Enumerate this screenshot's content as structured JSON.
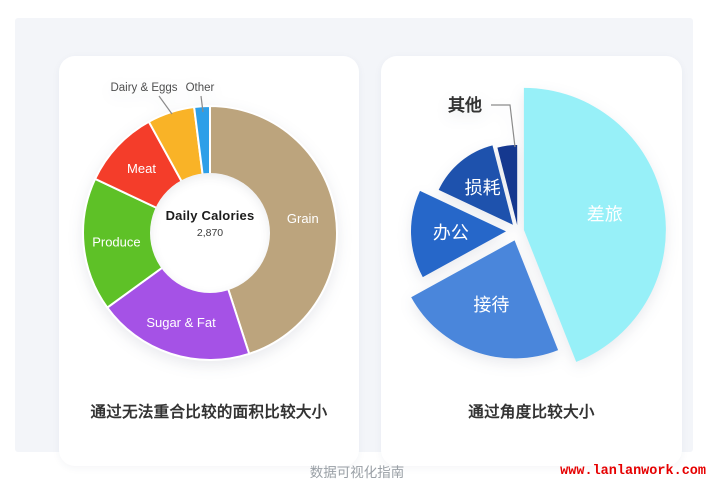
{
  "footer": {
    "note": "数据可视化指南",
    "watermark": "www.lanlanwork.com"
  },
  "colors": {
    "panel_bg": "#F3F5F9",
    "card_bg": "#FFFFFF",
    "leader_line": "#8B8B8B",
    "watermark_red": "#E60000",
    "footer_gray": "#9AA0A6"
  },
  "chart_data": [
    {
      "type": "pie",
      "variant": "donut",
      "caption": "通过无法重合比较的面积比较大小",
      "center": {
        "label": "Daily Calories",
        "value": "2,870"
      },
      "legend": "none",
      "slices": [
        {
          "label": "Grain",
          "pct": 45,
          "color": "#BCA47D",
          "label_pos": "inside"
        },
        {
          "label": "Sugar & Fat",
          "pct": 20,
          "color": "#A552E6",
          "label_pos": "inside"
        },
        {
          "label": "Produce",
          "pct": 17,
          "color": "#5EC127",
          "label_pos": "inside"
        },
        {
          "label": "Meat",
          "pct": 10,
          "color": "#F43D2A",
          "label_pos": "inside"
        },
        {
          "label": "Dairy & Eggs",
          "pct": 6,
          "color": "#F9B327",
          "label_pos": "outside"
        },
        {
          "label": "Other",
          "pct": 2,
          "color": "#2D9FE8",
          "label_pos": "outside"
        }
      ]
    },
    {
      "type": "pie",
      "variant": "exploded",
      "caption": "通过角度比较大小",
      "legend": "none",
      "slices": [
        {
          "label": "差旅",
          "pct": 44,
          "color": "#97F0F8",
          "label_pos": "inside",
          "label_color": "#55707C"
        },
        {
          "label": "接待",
          "pct": 23,
          "color": "#4A86DB",
          "label_pos": "inside"
        },
        {
          "label": "办公",
          "pct": 15,
          "color": "#2667C9",
          "label_pos": "inside"
        },
        {
          "label": "损耗",
          "pct": 14,
          "color": "#1E52AD",
          "label_pos": "inside"
        },
        {
          "label": "其他",
          "pct": 4,
          "color": "#15388F",
          "label_pos": "outside"
        }
      ]
    }
  ]
}
